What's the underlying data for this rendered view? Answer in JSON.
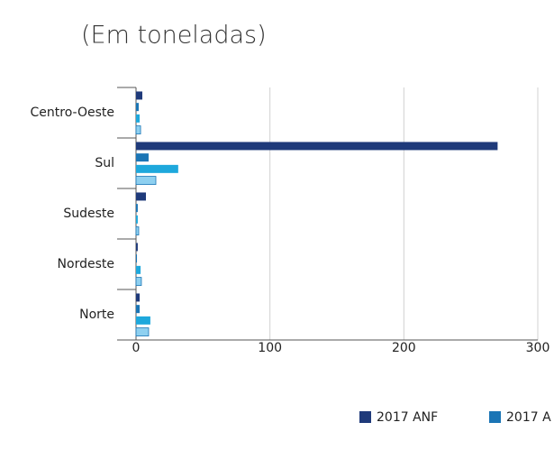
{
  "chart_data": {
    "type": "barh",
    "title": "(Em toneladas)",
    "categories": [
      "Centro-Oeste",
      "Sul",
      "Sudeste",
      "Nordeste",
      "Norte"
    ],
    "series": [
      {
        "name": "2017 ANF",
        "color": "#1f3a7a",
        "values": [
          4.7,
          270,
          7.4,
          1.3,
          2.7
        ]
      },
      {
        "name": "2017 A",
        "color": "#1b75b5",
        "values": [
          2,
          9.4,
          1.3,
          0.7,
          2.7
        ]
      },
      {
        "color": "#1ea8dc",
        "values": [
          2.7,
          31.5,
          1.3,
          3.4,
          10.7
        ]
      },
      {
        "color": "#8ed0f0",
        "values": [
          3.4,
          14.8,
          2,
          4,
          9.4
        ]
      }
    ],
    "xlim": [
      0,
      300
    ],
    "xticks": [
      0,
      100,
      200,
      300
    ],
    "grid": true
  }
}
